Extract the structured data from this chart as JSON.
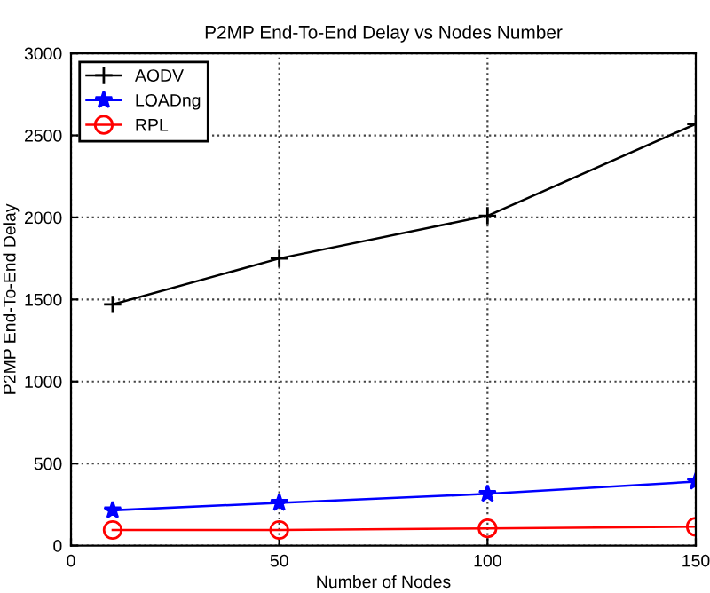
{
  "chart_data": {
    "type": "line",
    "title": "P2MP End-To-End Delay vs Nodes Number",
    "xlabel": "Number of Nodes",
    "ylabel": "P2MP End-To-End Delay",
    "x": [
      10,
      50,
      100,
      150
    ],
    "series": [
      {
        "name": "AODV",
        "color": "#000000",
        "marker": "cross",
        "values": [
          1470,
          1750,
          2010,
          2570
        ]
      },
      {
        "name": "LOADng",
        "color": "#0000ff",
        "marker": "star",
        "values": [
          215,
          260,
          315,
          390
        ]
      },
      {
        "name": "RPL",
        "color": "#ff0000",
        "marker": "circle",
        "values": [
          95,
          95,
          105,
          115
        ]
      }
    ],
    "xlim": [
      0,
      150
    ],
    "ylim": [
      0,
      3000
    ],
    "xticks": [
      0,
      50,
      100,
      150
    ],
    "yticks": [
      0,
      500,
      1000,
      1500,
      2000,
      2500,
      3000
    ],
    "grid": true,
    "legend": "top left",
    "line_style": "solid"
  }
}
